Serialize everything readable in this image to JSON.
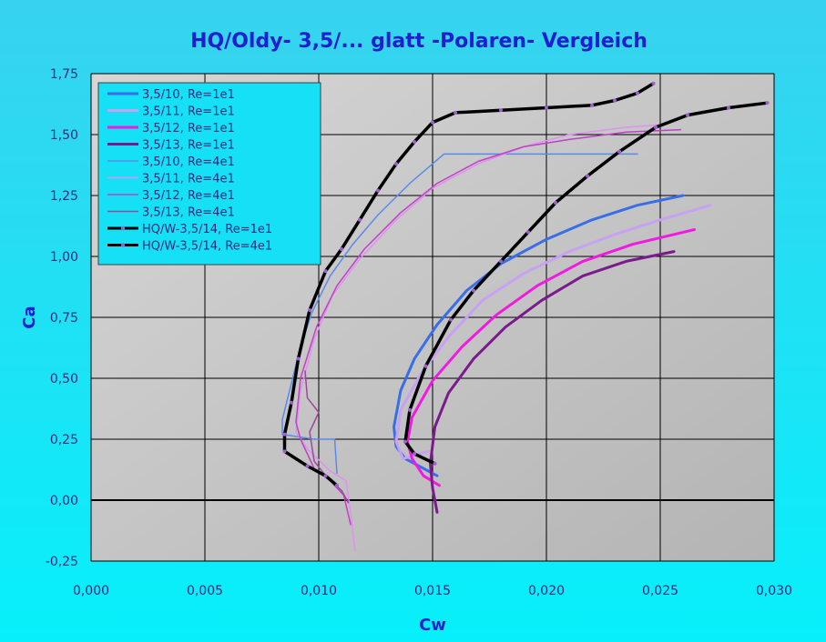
{
  "chart_data": {
    "type": "line",
    "title": "HQ/Oldy- 3,5/... glatt -Polaren- Vergleich",
    "xlabel": "Cw",
    "ylabel": "Ca",
    "xlim": [
      0.0,
      0.03
    ],
    "ylim": [
      -0.25,
      1.75
    ],
    "x_ticks": [
      "0,000",
      "0,005",
      "0,010",
      "0,015",
      "0,020",
      "0,025",
      "0,030"
    ],
    "y_ticks": [
      "1,75",
      "1,50",
      "1,25",
      "1,00",
      "0,75",
      "0,50",
      "0,25",
      "0,00",
      "-0,25"
    ],
    "grid": true,
    "legend_position": "top-left",
    "colors": {
      "background_gradient_top": "#38d2ee",
      "background_gradient_bottom": "#06f0fb",
      "plot_area": "#c0c0c0",
      "legend_bg": "#16e0f5",
      "text": "#1f1fd0"
    },
    "series": [
      {
        "name": "3,5/10, Re=1e1",
        "color": "#3a6ee8",
        "width": 3,
        "points": [
          [
            0.0152,
            0.1
          ],
          [
            0.0138,
            0.17
          ],
          [
            0.0134,
            0.22
          ],
          [
            0.0133,
            0.3
          ],
          [
            0.0136,
            0.45
          ],
          [
            0.0142,
            0.58
          ],
          [
            0.0152,
            0.72
          ],
          [
            0.0165,
            0.86
          ],
          [
            0.018,
            0.97
          ],
          [
            0.02,
            1.07
          ],
          [
            0.022,
            1.15
          ],
          [
            0.024,
            1.21
          ],
          [
            0.026,
            1.25
          ]
        ]
      },
      {
        "name": "3,5/11, Re=1e1",
        "color": "#c8a0f4",
        "width": 3,
        "points": [
          [
            0.0148,
            0.2
          ],
          [
            0.0137,
            0.17
          ],
          [
            0.0134,
            0.24
          ],
          [
            0.0136,
            0.37
          ],
          [
            0.0145,
            0.52
          ],
          [
            0.0157,
            0.67
          ],
          [
            0.0172,
            0.82
          ],
          [
            0.019,
            0.93
          ],
          [
            0.021,
            1.02
          ],
          [
            0.023,
            1.09
          ],
          [
            0.025,
            1.15
          ],
          [
            0.0272,
            1.21
          ]
        ]
      },
      {
        "name": "3,5/12, Re=1e1",
        "color": "#f01ae0",
        "width": 3,
        "points": [
          [
            0.0153,
            0.06
          ],
          [
            0.0146,
            0.1
          ],
          [
            0.0141,
            0.17
          ],
          [
            0.0139,
            0.24
          ],
          [
            0.0141,
            0.34
          ],
          [
            0.015,
            0.49
          ],
          [
            0.0163,
            0.63
          ],
          [
            0.0178,
            0.76
          ],
          [
            0.0196,
            0.88
          ],
          [
            0.0216,
            0.98
          ],
          [
            0.0238,
            1.05
          ],
          [
            0.0265,
            1.11
          ]
        ]
      },
      {
        "name": "3,5/13, Re=1e1",
        "color": "#7a1a8c",
        "width": 3,
        "points": [
          [
            0.0152,
            -0.05
          ],
          [
            0.015,
            0.05
          ],
          [
            0.0149,
            0.15
          ],
          [
            0.0151,
            0.3
          ],
          [
            0.0157,
            0.44
          ],
          [
            0.0168,
            0.58
          ],
          [
            0.0182,
            0.71
          ],
          [
            0.0198,
            0.82
          ],
          [
            0.0216,
            0.92
          ],
          [
            0.0235,
            0.98
          ],
          [
            0.0256,
            1.02
          ]
        ]
      },
      {
        "name": "3,5/10, Re=4e1",
        "color": "#5a8ae8",
        "width": 1.5,
        "points": [
          [
            0.0108,
            0.11
          ],
          [
            0.0107,
            0.25
          ],
          [
            0.0098,
            0.25
          ],
          [
            0.0084,
            0.27
          ],
          [
            0.0084,
            0.33
          ],
          [
            0.0088,
            0.48
          ],
          [
            0.0092,
            0.63
          ],
          [
            0.0097,
            0.77
          ],
          [
            0.0105,
            0.92
          ],
          [
            0.0115,
            1.05
          ],
          [
            0.0126,
            1.17
          ],
          [
            0.014,
            1.3
          ],
          [
            0.0155,
            1.42
          ],
          [
            0.018,
            1.42
          ],
          [
            0.022,
            1.42
          ],
          [
            0.024,
            1.42
          ]
        ]
      },
      {
        "name": "3,5/11, Re=4e1",
        "color": "#e090f0",
        "width": 1.5,
        "points": [
          [
            0.0116,
            -0.21
          ],
          [
            0.0114,
            -0.05
          ],
          [
            0.0112,
            0.08
          ],
          [
            0.0105,
            0.12
          ],
          [
            0.0095,
            0.21
          ],
          [
            0.009,
            0.28
          ],
          [
            0.0092,
            0.45
          ],
          [
            0.0098,
            0.66
          ],
          [
            0.0106,
            0.84
          ],
          [
            0.0118,
            0.99
          ],
          [
            0.0134,
            1.15
          ],
          [
            0.015,
            1.28
          ],
          [
            0.017,
            1.38
          ],
          [
            0.019,
            1.45
          ],
          [
            0.021,
            1.5
          ],
          [
            0.0235,
            1.53
          ],
          [
            0.025,
            1.54
          ]
        ]
      },
      {
        "name": "3,5/12, Re=4e1",
        "color": "#c040c8",
        "width": 1.5,
        "points": [
          [
            0.0114,
            -0.1
          ],
          [
            0.0111,
            0.02
          ],
          [
            0.0105,
            0.08
          ],
          [
            0.0098,
            0.13
          ],
          [
            0.0092,
            0.25
          ],
          [
            0.009,
            0.32
          ],
          [
            0.0092,
            0.5
          ],
          [
            0.0099,
            0.71
          ],
          [
            0.0108,
            0.88
          ],
          [
            0.012,
            1.03
          ],
          [
            0.0136,
            1.18
          ],
          [
            0.0152,
            1.3
          ],
          [
            0.017,
            1.39
          ],
          [
            0.019,
            1.45
          ],
          [
            0.021,
            1.48
          ],
          [
            0.0235,
            1.51
          ],
          [
            0.0259,
            1.52
          ]
        ]
      },
      {
        "name": "3,5/13, Re=4e1",
        "color": "#9a4a9a",
        "width": 1.5,
        "points": [
          [
            0.0113,
            -0.01
          ],
          [
            0.011,
            0.04
          ],
          [
            0.0103,
            0.1
          ],
          [
            0.0098,
            0.16
          ],
          [
            0.0096,
            0.28
          ],
          [
            0.01,
            0.36
          ],
          [
            0.0095,
            0.42
          ],
          [
            0.0094,
            0.53
          ]
        ]
      },
      {
        "name": "HQ/W-3,5/14, Re=1e1",
        "color": "#000000",
        "width": 3.5,
        "markers": true,
        "marker_color": "#a060d0",
        "points": [
          [
            0.0108,
            0.06
          ],
          [
            0.0103,
            0.1
          ],
          [
            0.0095,
            0.14
          ],
          [
            0.0085,
            0.2
          ],
          [
            0.0085,
            0.27
          ],
          [
            0.0088,
            0.4
          ],
          [
            0.0091,
            0.58
          ],
          [
            0.0096,
            0.78
          ],
          [
            0.0103,
            0.94
          ],
          [
            0.011,
            1.03
          ],
          [
            0.0118,
            1.15
          ],
          [
            0.0126,
            1.27
          ],
          [
            0.0134,
            1.38
          ],
          [
            0.0142,
            1.47
          ],
          [
            0.015,
            1.55
          ],
          [
            0.016,
            1.59
          ],
          [
            0.018,
            1.6
          ],
          [
            0.02,
            1.61
          ],
          [
            0.022,
            1.62
          ],
          [
            0.023,
            1.64
          ],
          [
            0.024,
            1.67
          ],
          [
            0.0247,
            1.71
          ]
        ]
      },
      {
        "name": "HQ/W-3,5/14, Re=4e1",
        "color": "#000000",
        "width": 3.5,
        "markers": true,
        "marker_color": "#a060d0",
        "points": [
          [
            0.0151,
            0.15
          ],
          [
            0.0142,
            0.19
          ],
          [
            0.0138,
            0.24
          ],
          [
            0.014,
            0.37
          ],
          [
            0.0147,
            0.55
          ],
          [
            0.0158,
            0.74
          ],
          [
            0.0168,
            0.86
          ],
          [
            0.018,
            0.98
          ],
          [
            0.0192,
            1.1
          ],
          [
            0.0204,
            1.22
          ],
          [
            0.0218,
            1.33
          ],
          [
            0.0232,
            1.43
          ],
          [
            0.0248,
            1.53
          ],
          [
            0.0262,
            1.58
          ],
          [
            0.028,
            1.61
          ],
          [
            0.0297,
            1.63
          ]
        ]
      }
    ]
  }
}
